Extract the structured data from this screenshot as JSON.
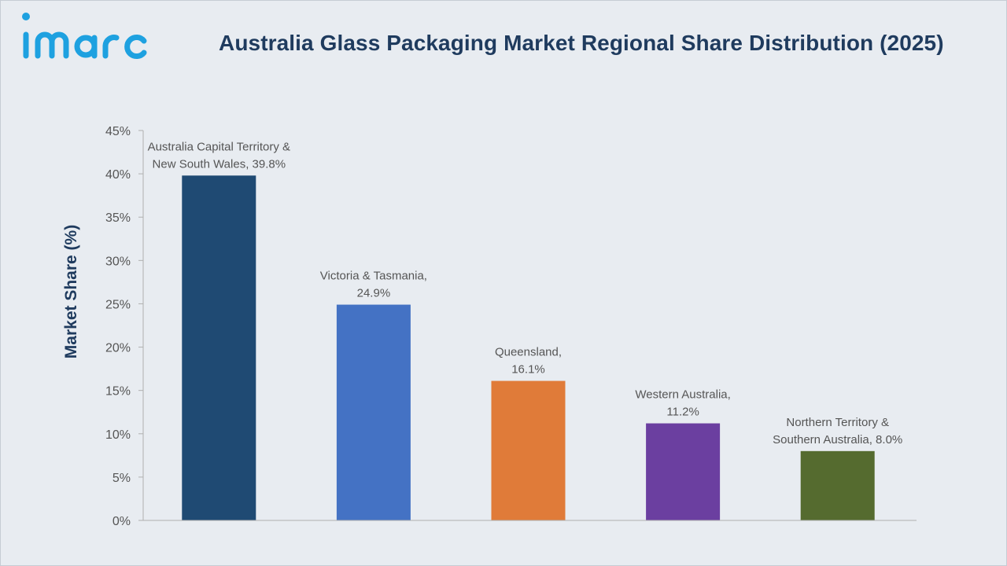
{
  "brand": {
    "name": "imarc",
    "color": "#1ea1e0"
  },
  "chart_data": {
    "type": "bar",
    "title": "Australia Glass Packaging Market Regional Share Distribution (2025)",
    "xlabel": "",
    "ylabel": "Market Share (%)",
    "ylim": [
      0,
      45
    ],
    "yticks": [
      0,
      5,
      10,
      15,
      20,
      25,
      30,
      35,
      40,
      45
    ],
    "ytick_labels": [
      "0%",
      "5%",
      "10%",
      "15%",
      "20%",
      "25%",
      "30%",
      "35%",
      "40%",
      "45%"
    ],
    "grid": false,
    "legend": "none",
    "categories": [
      "Australia Capital Territory & New South Wales",
      "Victoria & Tasmania",
      "Queensland",
      "Western Australia",
      "Northern Territory & Southern Australia"
    ],
    "values": [
      39.8,
      24.9,
      16.1,
      11.2,
      8.0
    ],
    "data_labels": [
      [
        "Australia Capital Territory &",
        "New South Wales, 39.8%"
      ],
      [
        "Victoria & Tasmania,",
        "24.9%"
      ],
      [
        "Queensland,",
        "16.1%"
      ],
      [
        "Western Australia,",
        "11.2%"
      ],
      [
        "Northern Territory &",
        "Southern Australia, 8.0%"
      ]
    ],
    "colors": [
      "#1f4a73",
      "#4472c4",
      "#e07b39",
      "#6b3fa0",
      "#556b2f"
    ]
  }
}
